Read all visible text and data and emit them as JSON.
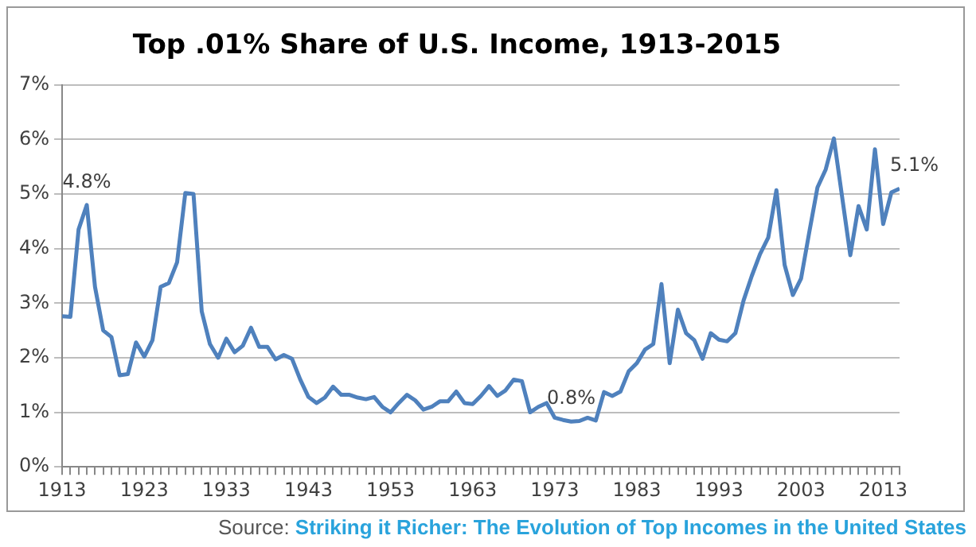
{
  "chart_data": {
    "type": "line",
    "title": "Top .01% Share of U.S. Income, 1913-2015",
    "x": [
      1913,
      1914,
      1915,
      1916,
      1917,
      1918,
      1919,
      1920,
      1921,
      1922,
      1923,
      1924,
      1925,
      1926,
      1927,
      1928,
      1929,
      1930,
      1931,
      1932,
      1933,
      1934,
      1935,
      1936,
      1937,
      1938,
      1939,
      1940,
      1941,
      1942,
      1943,
      1944,
      1945,
      1946,
      1947,
      1948,
      1949,
      1950,
      1951,
      1952,
      1953,
      1954,
      1955,
      1956,
      1957,
      1958,
      1959,
      1960,
      1961,
      1962,
      1963,
      1964,
      1965,
      1966,
      1967,
      1968,
      1969,
      1970,
      1971,
      1972,
      1973,
      1974,
      1975,
      1976,
      1977,
      1978,
      1979,
      1980,
      1981,
      1982,
      1983,
      1984,
      1985,
      1986,
      1987,
      1988,
      1989,
      1990,
      1991,
      1992,
      1993,
      1994,
      1995,
      1996,
      1997,
      1998,
      1999,
      2000,
      2001,
      2002,
      2003,
      2004,
      2005,
      2006,
      2007,
      2008,
      2009,
      2010,
      2011,
      2012,
      2013,
      2014,
      2015
    ],
    "series": [
      {
        "color": "#4f81bd",
        "values": [
          2.76,
          2.75,
          4.35,
          4.8,
          3.3,
          2.5,
          2.38,
          1.68,
          1.7,
          2.28,
          2.02,
          2.32,
          3.3,
          3.37,
          3.75,
          5.02,
          5.0,
          2.85,
          2.25,
          2.0,
          2.35,
          2.1,
          2.22,
          2.55,
          2.2,
          2.2,
          1.97,
          2.05,
          1.98,
          1.6,
          1.28,
          1.17,
          1.27,
          1.47,
          1.32,
          1.32,
          1.27,
          1.24,
          1.28,
          1.1,
          1.0,
          1.17,
          1.32,
          1.22,
          1.05,
          1.1,
          1.2,
          1.2,
          1.38,
          1.17,
          1.15,
          1.3,
          1.48,
          1.3,
          1.4,
          1.6,
          1.57,
          1.0,
          1.1,
          1.17,
          0.9,
          0.86,
          0.83,
          0.84,
          0.9,
          0.85,
          1.37,
          1.3,
          1.38,
          1.75,
          1.9,
          2.15,
          2.25,
          3.35,
          1.9,
          2.88,
          2.45,
          2.32,
          1.98,
          2.45,
          2.33,
          2.3,
          2.45,
          3.05,
          3.5,
          3.9,
          4.2,
          5.07,
          3.7,
          3.15,
          3.45,
          4.3,
          5.12,
          5.45,
          6.02,
          4.95,
          3.88,
          4.78,
          4.35,
          5.82,
          4.45,
          5.03,
          5.1
        ]
      }
    ],
    "xlim": [
      1913,
      2015
    ],
    "xticks": [
      1913,
      {
        "value": 1914,
        "label": null
      },
      {
        "value": 1915,
        "label": null
      },
      {
        "value": 1916,
        "label": null
      },
      {
        "value": 1917,
        "label": null
      },
      {
        "value": 1918,
        "label": null
      },
      {
        "value": 1919,
        "label": null
      },
      {
        "value": 1920,
        "label": null
      },
      {
        "value": 1921,
        "label": null
      },
      {
        "value": 1922,
        "label": null
      },
      1923,
      {
        "value": 1924,
        "label": null
      },
      {
        "value": 1925,
        "label": null
      },
      {
        "value": 1926,
        "label": null
      },
      {
        "value": 1927,
        "label": null
      },
      {
        "value": 1928,
        "label": null
      },
      {
        "value": 1929,
        "label": null
      },
      {
        "value": 1930,
        "label": null
      },
      {
        "value": 1931,
        "label": null
      },
      {
        "value": 1932,
        "label": null
      },
      1933,
      {
        "value": 1934,
        "label": null
      },
      {
        "value": 1935,
        "label": null
      },
      {
        "value": 1936,
        "label": null
      },
      {
        "value": 1937,
        "label": null
      },
      {
        "value": 1938,
        "label": null
      },
      {
        "value": 1939,
        "label": null
      },
      {
        "value": 1940,
        "label": null
      },
      {
        "value": 1941,
        "label": null
      },
      {
        "value": 1942,
        "label": null
      },
      1943,
      {
        "value": 1944,
        "label": null
      },
      {
        "value": 1945,
        "label": null
      },
      {
        "value": 1946,
        "label": null
      },
      {
        "value": 1947,
        "label": null
      },
      {
        "value": 1948,
        "label": null
      },
      {
        "value": 1949,
        "label": null
      },
      {
        "value": 1950,
        "label": null
      },
      {
        "value": 1951,
        "label": null
      },
      {
        "value": 1952,
        "label": null
      },
      1953,
      {
        "value": 1954,
        "label": null
      },
      {
        "value": 1955,
        "label": null
      },
      {
        "value": 1956,
        "label": null
      },
      {
        "value": 1957,
        "label": null
      },
      {
        "value": 1958,
        "label": null
      },
      {
        "value": 1959,
        "label": null
      },
      {
        "value": 1960,
        "label": null
      },
      {
        "value": 1961,
        "label": null
      },
      {
        "value": 1962,
        "label": null
      },
      1963,
      {
        "value": 1964,
        "label": null
      },
      {
        "value": 1965,
        "label": null
      },
      {
        "value": 1966,
        "label": null
      },
      {
        "value": 1967,
        "label": null
      },
      {
        "value": 1968,
        "label": null
      },
      {
        "value": 1969,
        "label": null
      },
      {
        "value": 1970,
        "label": null
      },
      {
        "value": 1971,
        "label": null
      },
      {
        "value": 1972,
        "label": null
      },
      1973,
      {
        "value": 1974,
        "label": null
      },
      {
        "value": 1975,
        "label": null
      },
      {
        "value": 1976,
        "label": null
      },
      {
        "value": 1977,
        "label": null
      },
      {
        "value": 1978,
        "label": null
      },
      {
        "value": 1979,
        "label": null
      },
      {
        "value": 1980,
        "label": null
      },
      {
        "value": 1981,
        "label": null
      },
      {
        "value": 1982,
        "label": null
      },
      1983,
      {
        "value": 1984,
        "label": null
      },
      {
        "value": 1985,
        "label": null
      },
      {
        "value": 1986,
        "label": null
      },
      {
        "value": 1987,
        "label": null
      },
      {
        "value": 1988,
        "label": null
      },
      {
        "value": 1989,
        "label": null
      },
      {
        "value": 1990,
        "label": null
      },
      {
        "value": 1991,
        "label": null
      },
      {
        "value": 1992,
        "label": null
      },
      1993,
      {
        "value": 1994,
        "label": null
      },
      {
        "value": 1995,
        "label": null
      },
      {
        "value": 1996,
        "label": null
      },
      {
        "value": 1997,
        "label": null
      },
      {
        "value": 1998,
        "label": null
      },
      {
        "value": 1999,
        "label": null
      },
      {
        "value": 2000,
        "label": null
      },
      {
        "value": 2001,
        "label": null
      },
      {
        "value": 2002,
        "label": null
      },
      2003,
      {
        "value": 2004,
        "label": null
      },
      {
        "value": 2005,
        "label": null
      },
      {
        "value": 2006,
        "label": null
      },
      {
        "value": 2007,
        "label": null
      },
      {
        "value": 2008,
        "label": null
      },
      {
        "value": 2009,
        "label": null
      },
      {
        "value": 2010,
        "label": null
      },
      {
        "value": 2011,
        "label": null
      },
      {
        "value": 2012,
        "label": null
      },
      2013,
      {
        "value": 2014,
        "label": null
      },
      {
        "value": 2015,
        "label": null
      }
    ],
    "ylim": [
      0,
      7
    ],
    "yticks": [
      {
        "value": 0,
        "label": "0%"
      },
      {
        "value": 1,
        "label": "1%"
      },
      {
        "value": 2,
        "label": "2%"
      },
      {
        "value": 3,
        "label": "3%"
      },
      {
        "value": 4,
        "label": "4%"
      },
      {
        "value": 5,
        "label": "5%"
      },
      {
        "value": 6,
        "label": "6%"
      },
      {
        "value": 7,
        "label": "7%"
      }
    ],
    "grid": "y",
    "legend": false,
    "marker": "none",
    "line_style": "solid",
    "annotations": [
      {
        "text": "4.8%",
        "x": 1916,
        "y": 4.8
      },
      {
        "text": "0.8%",
        "x": 1975,
        "y": 0.83
      },
      {
        "text": "5.1%",
        "x": 2015,
        "y": 5.1
      },
      "Source: Striking it Richer: The Evolution of Top Incomes in the United States"
    ]
  }
}
